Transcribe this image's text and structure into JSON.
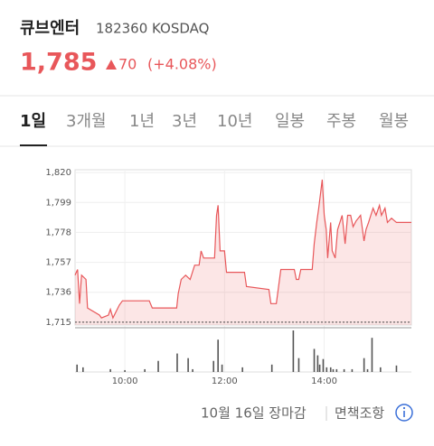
{
  "header": {
    "name": "큐브엔터",
    "code": "182360 KOSDAQ",
    "price": "1,785",
    "change": "70",
    "change_pct": "(+4.08%)"
  },
  "tabs": [
    "1일",
    "3개월",
    "1년",
    "3년",
    "10년",
    "일봉",
    "주봉",
    "월봉"
  ],
  "footer": {
    "status": "10월 16일 장마감",
    "disclaimer": "면책조항"
  },
  "chart_data": {
    "type": "line",
    "color": "#e8575a",
    "area": true,
    "base_value": 1715,
    "x": [
      9.0,
      9.05,
      9.09,
      9.13,
      9.22,
      9.25,
      9.49,
      9.53,
      9.67,
      9.71,
      9.76,
      9.89,
      9.95,
      10.49,
      10.55,
      11.04,
      11.07,
      11.13,
      11.22,
      11.31,
      11.4,
      11.49,
      11.53,
      11.58,
      11.67,
      11.8,
      11.84,
      11.87,
      11.91,
      12.0,
      12.04,
      12.4,
      12.44,
      12.89,
      12.93,
      13.04,
      13.13,
      13.4,
      13.44,
      13.49,
      13.53,
      13.76,
      13.8,
      13.85,
      13.89,
      13.96,
      14.0,
      14.04,
      14.07,
      14.13,
      14.16,
      14.22,
      14.27,
      14.36,
      14.42,
      14.47,
      14.53,
      14.58,
      14.64,
      14.73,
      14.8,
      14.84,
      14.89,
      14.98,
      15.04,
      15.11,
      15.15,
      15.22,
      15.27,
      15.35,
      15.45,
      15.75
    ],
    "values": [
      1748,
      1752,
      1728,
      1748,
      1745,
      1725,
      1720,
      1718,
      1720,
      1724,
      1718,
      1727,
      1730,
      1730,
      1725,
      1725,
      1735,
      1745,
      1748,
      1745,
      1755,
      1755,
      1765,
      1760,
      1760,
      1760,
      1790,
      1797,
      1765,
      1765,
      1750,
      1750,
      1740,
      1738,
      1728,
      1728,
      1752,
      1752,
      1745,
      1745,
      1752,
      1752,
      1770,
      1785,
      1795,
      1815,
      1790,
      1780,
      1760,
      1785,
      1765,
      1760,
      1780,
      1790,
      1770,
      1790,
      1790,
      1782,
      1786,
      1790,
      1772,
      1780,
      1785,
      1795,
      1790,
      1797,
      1790,
      1795,
      1785,
      1788,
      1785,
      1785
    ],
    "xlim": [
      9,
      15.75
    ],
    "ylim": [
      1713,
      1822
    ],
    "xticks": [
      {
        "value": 10,
        "label": "10:00"
      },
      {
        "value": 12,
        "label": "12:00"
      },
      {
        "value": 14,
        "label": "14:00"
      }
    ],
    "yticks": [
      {
        "value": 1715,
        "label": "1,715"
      },
      {
        "value": 1736,
        "label": "1,736"
      },
      {
        "value": 1757,
        "label": "1,757"
      },
      {
        "value": 1778,
        "label": "1,778"
      },
      {
        "value": 1799,
        "label": "1,799"
      },
      {
        "value": 1820,
        "label": "1,820"
      }
    ],
    "grid": true,
    "volume": {
      "color": "#555555",
      "x": [
        9.04,
        9.16,
        9.71,
        10.0,
        10.4,
        10.67,
        11.05,
        11.27,
        11.36,
        11.78,
        11.87,
        11.95,
        12.36,
        12.95,
        13.38,
        13.49,
        13.8,
        13.87,
        13.91,
        13.98,
        14.05,
        14.13,
        14.18,
        14.25,
        14.4,
        14.56,
        14.8,
        14.87,
        14.96,
        15.13,
        15.45
      ],
      "values": [
        8,
        5,
        3,
        2,
        3,
        12,
        20,
        15,
        3,
        12,
        35,
        8,
        5,
        8,
        45,
        15,
        25,
        18,
        8,
        14,
        5,
        5,
        3,
        3,
        3,
        3,
        15,
        3,
        37,
        5,
        7
      ]
    }
  }
}
